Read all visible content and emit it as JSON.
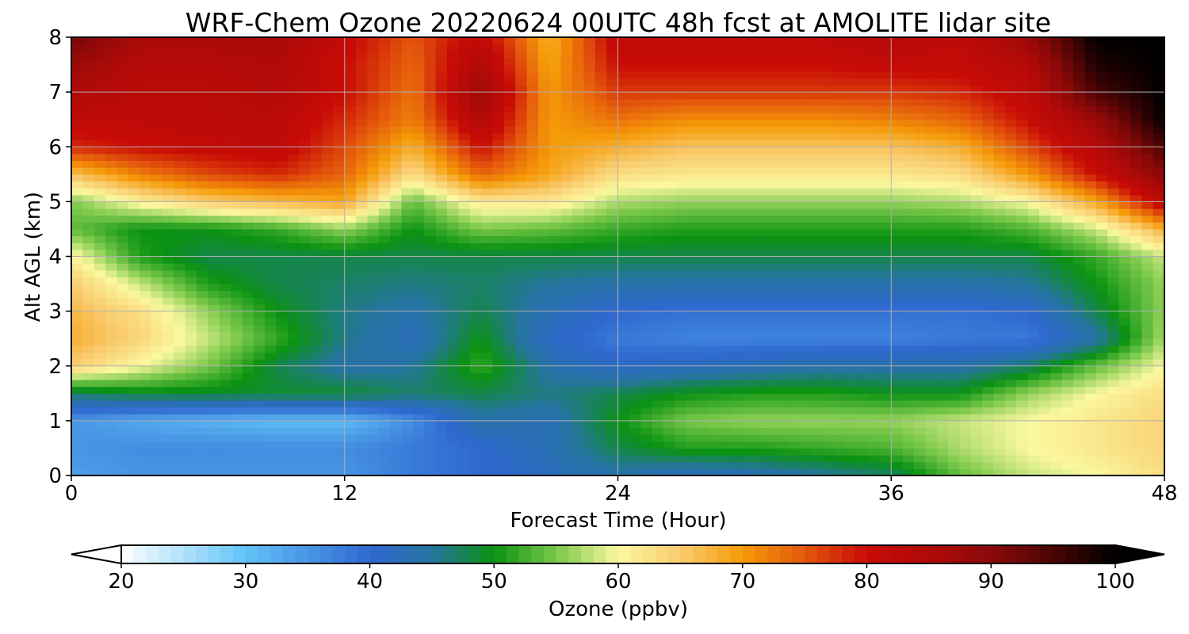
{
  "chart_data": {
    "type": "heatmap",
    "title": "WRF-Chem Ozone  20220624 00UTC 48h fcst at AMOLITE lidar site",
    "xlabel": "Forecast Time (Hour)",
    "ylabel": "Alt AGL (km)",
    "xlim": [
      0,
      48
    ],
    "ylim": [
      0,
      8
    ],
    "xticks": [
      0,
      12,
      24,
      36,
      48
    ],
    "yticks": [
      0,
      1,
      2,
      3,
      4,
      5,
      6,
      7,
      8
    ],
    "grid": true,
    "x": [
      0,
      3,
      6,
      9,
      12,
      15,
      18,
      21,
      24,
      27,
      30,
      33,
      36,
      39,
      42,
      45,
      48
    ],
    "y": [
      0,
      0.5,
      1,
      1.5,
      2,
      2.5,
      3,
      3.5,
      4,
      4.5,
      5,
      5.5,
      6,
      6.5,
      7,
      7.5,
      8
    ],
    "values": [
      [
        34,
        35,
        35,
        35,
        35,
        38,
        40,
        42,
        44,
        42,
        43,
        45,
        47,
        54,
        58,
        60,
        63
      ],
      [
        35,
        36,
        36,
        36,
        36,
        38,
        40,
        43,
        48,
        51,
        51,
        52,
        53,
        57,
        60,
        62,
        64
      ],
      [
        35,
        33,
        32,
        31,
        31,
        36,
        44,
        43,
        50,
        55,
        56,
        56,
        56,
        58,
        60,
        62,
        64
      ],
      [
        47,
        49,
        49,
        49,
        49,
        47,
        48,
        46,
        48,
        50,
        51,
        51,
        50,
        50,
        56,
        60,
        63
      ],
      [
        65,
        60,
        55,
        48,
        44,
        45,
        52,
        44,
        41,
        42,
        43,
        44,
        44,
        44,
        47,
        54,
        60
      ],
      [
        68,
        64,
        58,
        52,
        46,
        42,
        50,
        41,
        38,
        37,
        37,
        37,
        37,
        38,
        38,
        44,
        57
      ],
      [
        67,
        63,
        56,
        50,
        46,
        44,
        48,
        43,
        40,
        39,
        39,
        39,
        39,
        39,
        40,
        48,
        56
      ],
      [
        65,
        58,
        51,
        48,
        47,
        46,
        47,
        45,
        44,
        44,
        44,
        44,
        44,
        44,
        45,
        50,
        56
      ],
      [
        61,
        51,
        48,
        48,
        48,
        48,
        48,
        48,
        48,
        48,
        48,
        48,
        48,
        48,
        48,
        52,
        58
      ],
      [
        54,
        50,
        50,
        52,
        56,
        50,
        55,
        54,
        52,
        51,
        51,
        51,
        51,
        51,
        53,
        58,
        68
      ],
      [
        55,
        61,
        65,
        67,
        69,
        54,
        62,
        62,
        57,
        56,
        56,
        56,
        56,
        57,
        60,
        69,
        83
      ],
      [
        66,
        72,
        76,
        78,
        74,
        63,
        74,
        69,
        63,
        62,
        62,
        62,
        62,
        63,
        70,
        80,
        90
      ],
      [
        78,
        80,
        81,
        82,
        76,
        68,
        80,
        70,
        68,
        66,
        66,
        66,
        66,
        68,
        76,
        84,
        95
      ],
      [
        82,
        82,
        83,
        83,
        78,
        72,
        85,
        70,
        73,
        71,
        71,
        71,
        72,
        74,
        80,
        88,
        100
      ],
      [
        85,
        83,
        83,
        84,
        80,
        73,
        88,
        70,
        77,
        77,
        77,
        77,
        77,
        78,
        82,
        95,
        100
      ],
      [
        88,
        84,
        84,
        85,
        80,
        74,
        85,
        69,
        80,
        80,
        80,
        80,
        81,
        81,
        84,
        98,
        100
      ],
      [
        92,
        86,
        86,
        86,
        81,
        75,
        82,
        68,
        82,
        82,
        82,
        82,
        84,
        82,
        88,
        100,
        100
      ]
    ]
  },
  "colorbar": {
    "label": "Ozone  (ppbv)",
    "min": 20,
    "max": 100,
    "ticks": [
      20,
      30,
      40,
      50,
      60,
      70,
      80,
      90,
      100
    ],
    "extend": "both",
    "stops": [
      {
        "v": 20,
        "c": "#ffffff"
      },
      {
        "v": 30,
        "c": "#62c3f8"
      },
      {
        "v": 40,
        "c": "#2f68d0"
      },
      {
        "v": 45,
        "c": "#2674a0"
      },
      {
        "v": 50,
        "c": "#0a9212"
      },
      {
        "v": 55,
        "c": "#7ac84a"
      },
      {
        "v": 60,
        "c": "#fbf8a0"
      },
      {
        "v": 65,
        "c": "#f9cc6e"
      },
      {
        "v": 70,
        "c": "#f59a08"
      },
      {
        "v": 75,
        "c": "#e4580c"
      },
      {
        "v": 80,
        "c": "#c80b06"
      },
      {
        "v": 85,
        "c": "#b00a08"
      },
      {
        "v": 90,
        "c": "#8a0909"
      },
      {
        "v": 95,
        "c": "#4a0404"
      },
      {
        "v": 100,
        "c": "#000000"
      }
    ]
  }
}
